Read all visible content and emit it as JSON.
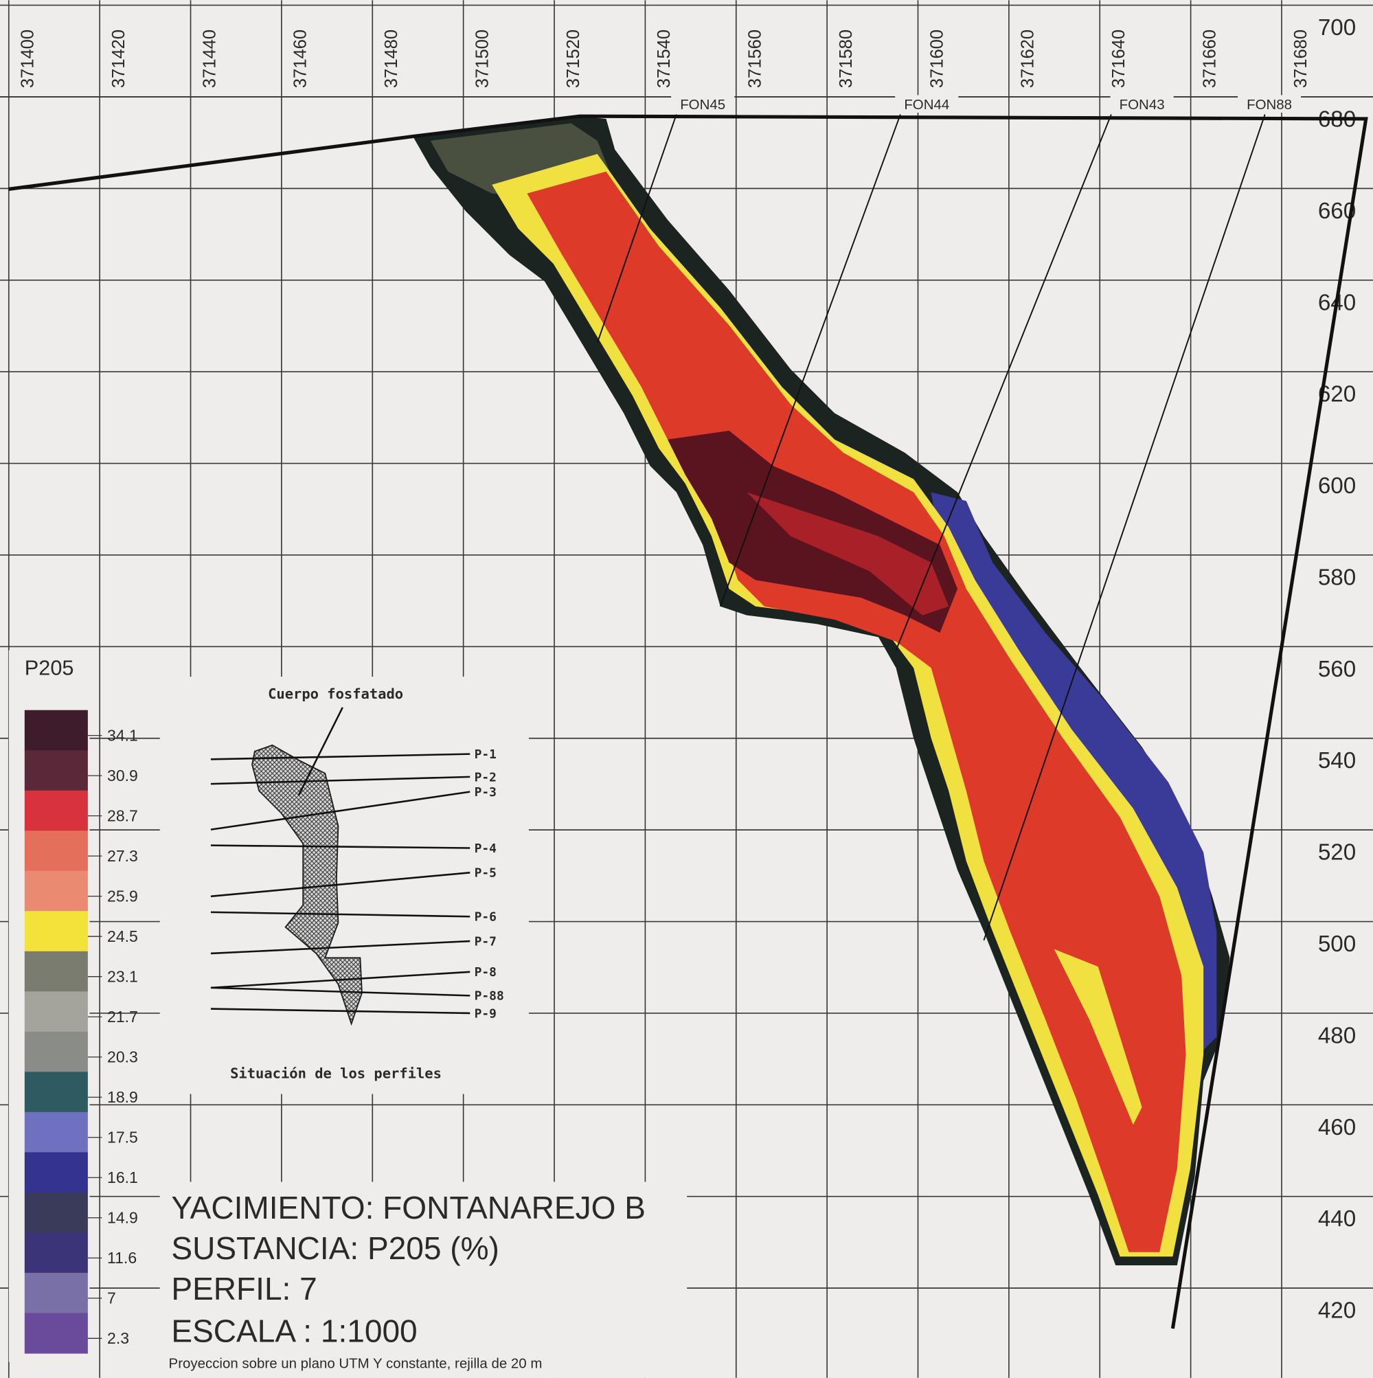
{
  "x_axis": {
    "ticks": [
      371400,
      371420,
      371440,
      371460,
      371480,
      371500,
      371520,
      371540,
      371560,
      371580,
      371600,
      371620,
      371640,
      371660,
      371680
    ]
  },
  "y_axis": {
    "ticks": [
      700,
      680,
      660,
      640,
      620,
      600,
      580,
      560,
      540,
      520,
      500,
      480,
      460,
      440,
      420
    ]
  },
  "drillholes": [
    "FON45",
    "FON44",
    "FON43",
    "FON88"
  ],
  "legend": {
    "title": "P205",
    "labels": [
      34.1,
      30.9,
      28.7,
      27.3,
      25.9,
      24.5,
      23.1,
      21.7,
      20.3,
      18.9,
      17.5,
      16.1,
      14.9,
      11.6,
      7,
      2.3
    ],
    "colors": [
      "#3e1c2c",
      "#5a2838",
      "#d8323c",
      "#e4705c",
      "#ea8a70",
      "#f2e23a",
      "#7a7c70",
      "#a4a49c",
      "#8a8c88",
      "#2e5a62",
      "#7070c0",
      "#343490",
      "#3a3a5a",
      "#3c3478",
      "#7a70a8",
      "#6a4a9a"
    ]
  },
  "inset": {
    "title": "Cuerpo fosfatado",
    "profiles": [
      "P-1",
      "P-2",
      "P-3",
      "P-4",
      "P-5",
      "P-6",
      "P-7",
      "P-8",
      "P-88",
      "P-9"
    ],
    "caption": "Situación de los perfiles"
  },
  "title_block": {
    "deposit": "YACIMIENTO: FONTANAREJO B",
    "substance": "SUSTANCIA: P205 (%)",
    "profile": "PERFIL: 7",
    "scale": "ESCALA : 1:1000",
    "note": "Proyeccion sobre un plano UTM Y constante, rejilla de 20 m"
  }
}
